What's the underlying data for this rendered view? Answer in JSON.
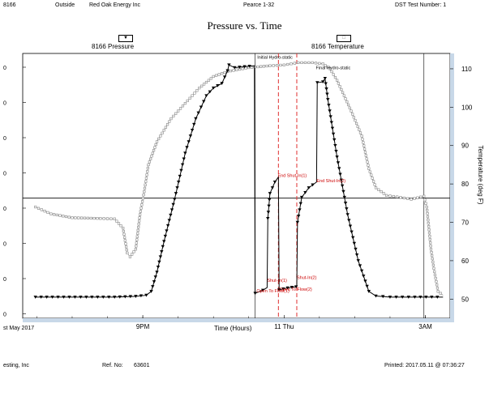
{
  "header": {
    "well_id": "8166",
    "location": "Outside",
    "company": "Red Oak Energy Inc",
    "well_name": "Pearce 1-32",
    "test_number": "DST Test Number: 1"
  },
  "legend": {
    "pressure": "8166 Pressure",
    "temperature": "8166 Temperature",
    "pressure_marker": "▼",
    "temperature_marker": "□"
  },
  "footer": {
    "date_left": "st May 2017",
    "company_left": "esting, Inc",
    "ref_label": "Ref. No:",
    "ref_value": "63601",
    "printed": "Printed: 2017.05.11 @ 07:36:27"
  },
  "chart_data": {
    "type": "line",
    "title": "Pressure vs. Time",
    "xlabel": "Time (Hours)",
    "ylabel_right": "Temperature (deg F)",
    "x_ticks": [
      {
        "label": "9PM",
        "h": 9
      },
      {
        "label": "11 Thu",
        "h": 11
      },
      {
        "label": "3AM",
        "h": 13
      }
    ],
    "xlim_h": [
      7.3,
      13.35
    ],
    "y2_ticks": [
      50,
      60,
      70,
      80,
      90,
      100,
      110
    ],
    "y2lim": [
      45,
      114
    ],
    "left_tick_labels": [
      "0",
      "0",
      "0",
      "0",
      "0",
      "0",
      "0",
      "0"
    ],
    "horizontal_line_y2": 76.3,
    "vertical_lines_h": [
      10.59,
      12.98
    ],
    "red_dashed_lines_h": [
      10.92,
      11.18
    ],
    "colors": {
      "annotation": "#cc0000",
      "temperature": "#888888",
      "pressure": "#000000",
      "frame_shade": "#c8d8e8"
    },
    "annotations": [
      {
        "text": "Initial Hydro-static",
        "h": 10.62,
        "v": 112.6,
        "color": "#000000"
      },
      {
        "text": "Final Hydro-static",
        "h": 11.45,
        "v": 109.9,
        "color": "#000000"
      },
      {
        "text": "End Shut-In(1)",
        "h": 10.91,
        "v": 81.8,
        "color": "#cc0000"
      },
      {
        "text": "End Shut-In(2)",
        "h": 11.46,
        "v": 80.5,
        "color": "#cc0000"
      },
      {
        "text": "Open To Flow(1)",
        "h": 10.61,
        "v": 51.7,
        "color": "#cc0000"
      },
      {
        "text": "Shut-In(1)",
        "h": 10.76,
        "v": 54.5,
        "color": "#cc0000"
      },
      {
        "text": "Open To Flow(2)",
        "h": 10.93,
        "v": 52.2,
        "color": "#cc0000"
      },
      {
        "text": "Shut-In(2)",
        "h": 11.18,
        "v": 55.2,
        "color": "#cc0000"
      }
    ],
    "series": [
      {
        "name": "8166 Pressure",
        "marker": "triangle-down",
        "points": [
          [
            7.48,
            50.5
          ],
          [
            7.8,
            50.5
          ],
          [
            8.2,
            50.5
          ],
          [
            8.6,
            50.5
          ],
          [
            8.9,
            50.7
          ],
          [
            9.05,
            51
          ],
          [
            9.12,
            52
          ],
          [
            9.2,
            57
          ],
          [
            9.3,
            65
          ],
          [
            9.45,
            76
          ],
          [
            9.6,
            88
          ],
          [
            9.75,
            97
          ],
          [
            9.9,
            103
          ],
          [
            10.0,
            105
          ],
          [
            10.12,
            106.2
          ],
          [
            10.2,
            109.5
          ],
          [
            10.22,
            111
          ],
          [
            10.3,
            110.3
          ],
          [
            10.58,
            110.8
          ],
          [
            10.59,
            51.5
          ],
          [
            10.7,
            52.3
          ],
          [
            10.76,
            53.0
          ],
          [
            10.77,
            71
          ],
          [
            10.8,
            77.5
          ],
          [
            10.87,
            80.5
          ],
          [
            10.92,
            81.8
          ],
          [
            10.93,
            52.4
          ],
          [
            11.05,
            52.9
          ],
          [
            11.17,
            53.2
          ],
          [
            11.18,
            53.4
          ],
          [
            11.19,
            70
          ],
          [
            11.25,
            76.5
          ],
          [
            11.35,
            79
          ],
          [
            11.46,
            80.5
          ],
          [
            11.47,
            106.4
          ],
          [
            11.55,
            106.6
          ],
          [
            11.58,
            107.5
          ],
          [
            11.62,
            102
          ],
          [
            11.75,
            87
          ],
          [
            11.9,
            72
          ],
          [
            12.05,
            60
          ],
          [
            12.2,
            52
          ],
          [
            12.3,
            50.8
          ],
          [
            12.5,
            50.5
          ],
          [
            12.85,
            50.5
          ],
          [
            13.25,
            50.5
          ]
        ]
      },
      {
        "name": "8166 Temperature",
        "marker": "square",
        "points": [
          [
            7.48,
            74
          ],
          [
            7.7,
            72.2
          ],
          [
            8.0,
            71.2
          ],
          [
            8.4,
            71
          ],
          [
            8.6,
            70.9
          ],
          [
            8.72,
            68.5
          ],
          [
            8.78,
            62
          ],
          [
            8.82,
            61
          ],
          [
            8.9,
            63
          ],
          [
            8.96,
            72
          ],
          [
            9.02,
            78
          ],
          [
            9.08,
            85
          ],
          [
            9.2,
            91
          ],
          [
            9.4,
            97
          ],
          [
            9.6,
            101
          ],
          [
            9.8,
            105
          ],
          [
            10.0,
            108
          ],
          [
            10.2,
            109.3
          ],
          [
            10.5,
            110.3
          ],
          [
            10.8,
            110.8
          ],
          [
            11.0,
            111
          ],
          [
            11.2,
            111.6
          ],
          [
            11.4,
            111.6
          ],
          [
            11.55,
            111.3
          ],
          [
            11.65,
            110
          ],
          [
            11.75,
            107
          ],
          [
            11.85,
            103
          ],
          [
            11.95,
            99
          ],
          [
            12.1,
            92.5
          ],
          [
            12.2,
            84
          ],
          [
            12.3,
            79
          ],
          [
            12.45,
            77
          ],
          [
            12.65,
            76.5
          ],
          [
            12.8,
            76
          ],
          [
            12.98,
            76.8
          ],
          [
            13.02,
            74
          ],
          [
            13.08,
            63
          ],
          [
            13.12,
            58
          ],
          [
            13.18,
            52
          ],
          [
            13.25,
            51
          ]
        ]
      }
    ]
  }
}
